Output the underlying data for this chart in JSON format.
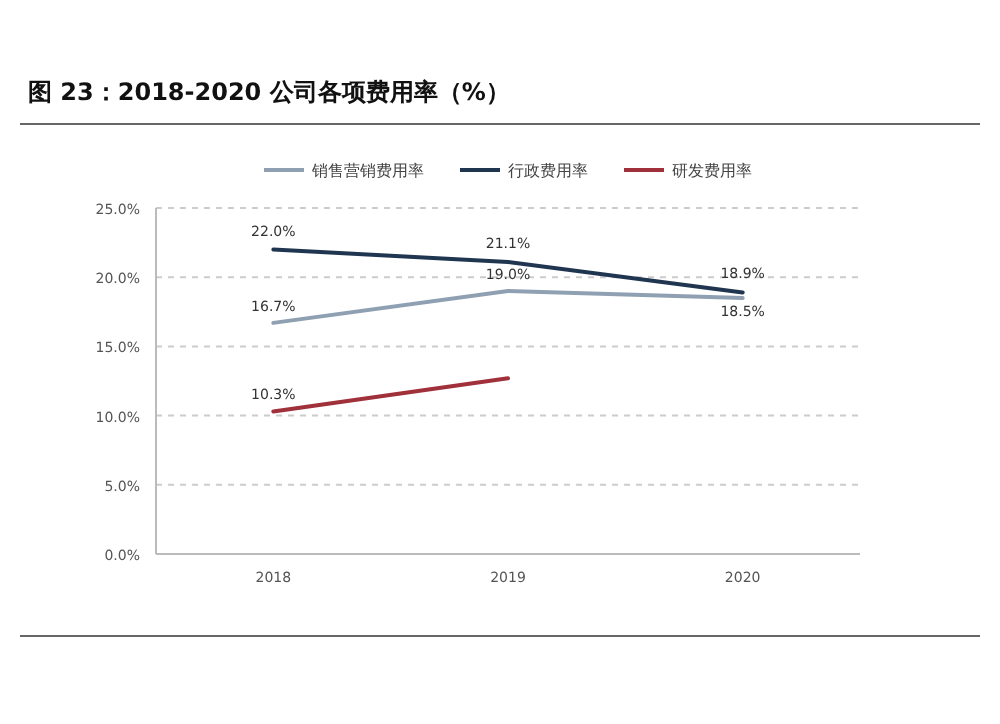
{
  "chart_data": {
    "type": "line",
    "title": "图 23：2018-2020 公司各项费用率（%）",
    "categories": [
      "2018",
      "2019",
      "2020"
    ],
    "series": [
      {
        "name": "销售营销费用率",
        "color": "#8fa0b3",
        "values": [
          16.7,
          19.0,
          18.5
        ],
        "value_labels": [
          "16.7%",
          "19.0%",
          "18.5%"
        ]
      },
      {
        "name": "行政费用率",
        "color": "#1f3550",
        "values": [
          22.0,
          21.1,
          18.9
        ],
        "value_labels": [
          "22.0%",
          "21.1%",
          "18.9%"
        ]
      },
      {
        "name": "研发费用率",
        "color": "#a0303a",
        "values": [
          10.3,
          12.7,
          null
        ],
        "value_labels": [
          "10.3%",
          null,
          null
        ]
      }
    ],
    "ylim": [
      0,
      25
    ],
    "yticks": [
      {
        "value": 0,
        "label": "0.0%"
      },
      {
        "value": 5,
        "label": "5.0%"
      },
      {
        "value": 10,
        "label": "10.0%"
      },
      {
        "value": 15,
        "label": "15.0%"
      },
      {
        "value": 20,
        "label": "20.0%"
      },
      {
        "value": 25,
        "label": "25.0%"
      }
    ],
    "grid": "y",
    "legend": "top",
    "marker": "none",
    "line_style": "solid"
  }
}
